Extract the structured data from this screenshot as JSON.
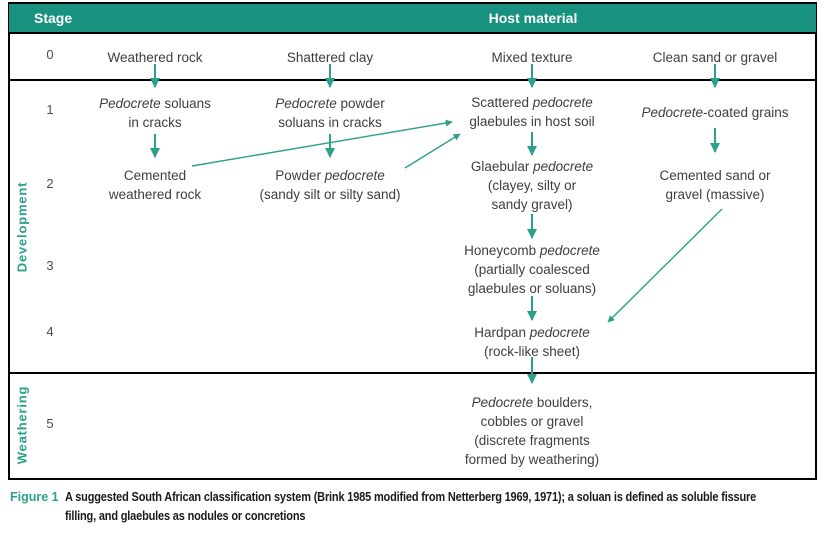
{
  "colors": {
    "teal_header": "#18917F",
    "teal_accent": "#2CA08C",
    "header_text": "#FFFFFF",
    "text": "#3E3E3E",
    "stage_number": "#4D4D4D",
    "caption_text": "#1A1A1A",
    "border": "#000000"
  },
  "header": {
    "stage": "Stage",
    "host_material": "Host material"
  },
  "side_labels": {
    "development": "Development",
    "weathering": "Weathering"
  },
  "stage_numbers": [
    "0",
    "1",
    "2",
    "3",
    "4",
    "5"
  ],
  "nodes": {
    "weathered_rock": "Weathered rock",
    "shattered_clay": "Shattered clay",
    "mixed_texture": "Mixed texture",
    "clean_sand_gravel": "Clean sand or gravel",
    "pedocrete_soluans": [
      "*Pedocrete* soluans",
      "in cracks"
    ],
    "pedocrete_powder_soluans": [
      "*Pedocrete* powder",
      "soluans in cracks"
    ],
    "scattered_glaebules": [
      "Scattered *pedocrete*",
      "glaebules in host soil"
    ],
    "pedocrete_coated_grains": [
      "*Pedocrete*-coated grains"
    ],
    "cemented_weathered_rock": [
      "Cemented",
      "weathered rock"
    ],
    "powder_pedocrete": [
      "Powder *pedocrete*",
      "(sandy silt or silty sand)"
    ],
    "glaebular_pedocrete": [
      "Glaebular *pedocrete*",
      "(clayey, silty or",
      "sandy gravel)"
    ],
    "cemented_sand_gravel": [
      "Cemented sand or",
      "gravel (massive)"
    ],
    "honeycomb_pedocrete": [
      "Honeycomb *pedocrete*",
      "(partially coalesced",
      "glaebules or soluans)"
    ],
    "hardpan_pedocrete": [
      "Hardpan *pedocrete*",
      "(rock-like sheet)"
    ],
    "pedocrete_boulders": [
      "*Pedocrete* boulders,",
      "cobbles or gravel",
      "(discrete fragments",
      "formed by weathering)"
    ]
  },
  "flows": [
    {
      "from": "weathered_rock",
      "to": "pedocrete_soluans"
    },
    {
      "from": "shattered_clay",
      "to": "pedocrete_powder_soluans"
    },
    {
      "from": "mixed_texture",
      "to": "scattered_glaebules"
    },
    {
      "from": "clean_sand_gravel",
      "to": "pedocrete_coated_grains"
    },
    {
      "from": "pedocrete_soluans",
      "to": "cemented_weathered_rock"
    },
    {
      "from": "pedocrete_powder_soluans",
      "to": "powder_pedocrete"
    },
    {
      "from": "scattered_glaebules",
      "to": "glaebular_pedocrete"
    },
    {
      "from": "pedocrete_coated_grains",
      "to": "cemented_sand_gravel"
    },
    {
      "from": "cemented_weathered_rock",
      "to": "scattered_glaebules"
    },
    {
      "from": "powder_pedocrete",
      "to": "scattered_glaebules"
    },
    {
      "from": "glaebular_pedocrete",
      "to": "honeycomb_pedocrete"
    },
    {
      "from": "honeycomb_pedocrete",
      "to": "hardpan_pedocrete"
    },
    {
      "from": "cemented_sand_gravel",
      "to": "hardpan_pedocrete"
    },
    {
      "from": "hardpan_pedocrete",
      "to": "pedocrete_boulders"
    }
  ],
  "caption": {
    "label": "Figure 1",
    "line1": "A suggested South African classification system (Brink 1985 modified from Netterberg 1969, 1971); a soluan is defined as soluble fissure",
    "line2": "filling, and glaebules as nodules or concretions"
  }
}
